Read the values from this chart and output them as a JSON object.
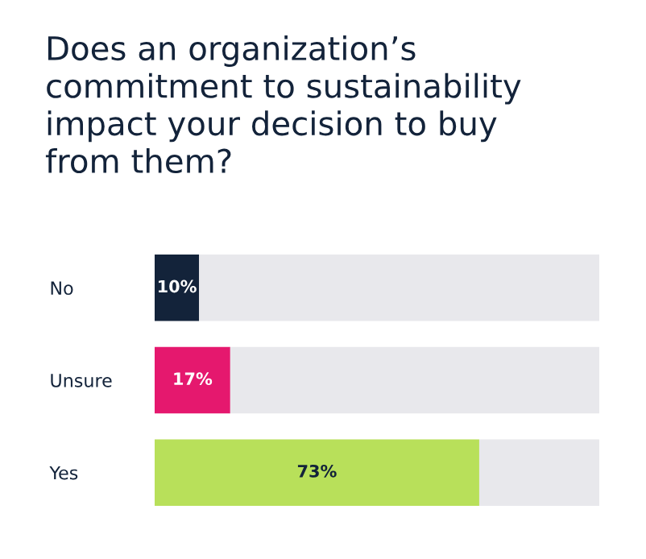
{
  "chart_data": {
    "type": "bar",
    "orientation": "horizontal",
    "stacked": true,
    "title": "Does an organization’s\ncommitment to sustainability\nimpact your decision to buy\nfrom them?",
    "categories": [
      "No",
      "Unsure",
      "Yes"
    ],
    "series": [
      {
        "colors": [
          "#13233a",
          "#e5186e",
          "#b8e05a"
        ],
        "values": [
          10,
          17,
          73
        ],
        "value_labels": [
          "10%",
          "17%",
          "73%"
        ]
      },
      {
        "color": "#e8e8ec",
        "values": [
          90,
          83,
          27
        ]
      }
    ],
    "xlim": [
      0,
      100
    ],
    "tick_labels": "y",
    "grid": false,
    "legend": false
  }
}
